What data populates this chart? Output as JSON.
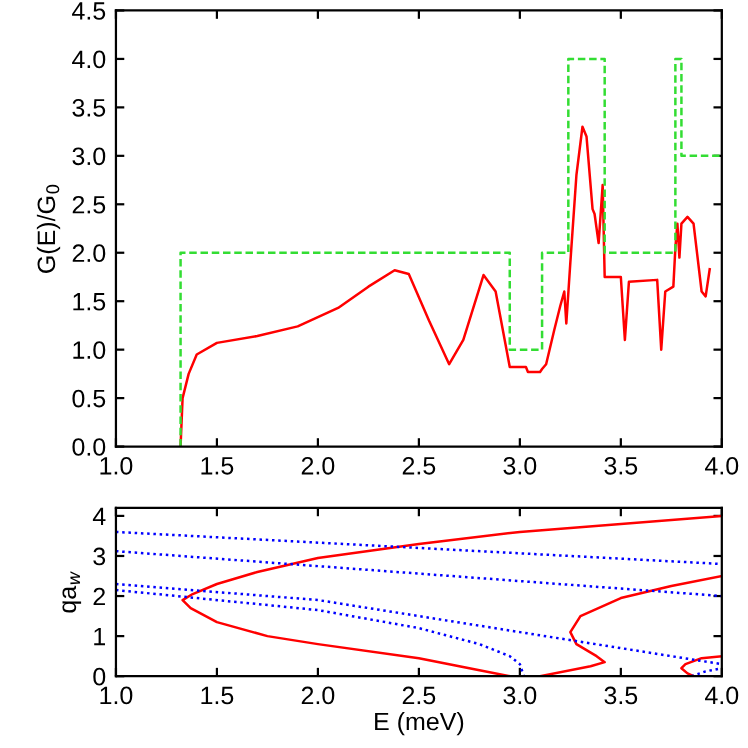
{
  "chart_data": [
    {
      "type": "line",
      "ylabel": "G(E)/G$_{0}$",
      "xlim": [
        1.0,
        4.0
      ],
      "ylim": [
        0,
        4.5
      ],
      "xticks": [
        {
          "value": 1.0,
          "label": "1.0"
        },
        {
          "value": 1.5,
          "label": "1.5"
        },
        {
          "value": 2.0,
          "label": "2.0"
        },
        {
          "value": 2.5,
          "label": "2.5"
        },
        {
          "value": 3.0,
          "label": "3.0"
        },
        {
          "value": 3.5,
          "label": "3.5"
        },
        {
          "value": 4.0,
          "label": "4.0"
        }
      ],
      "yticks": [
        {
          "value": 0,
          "label": "0.0"
        },
        {
          "value": 0.5,
          "label": "0.5"
        },
        {
          "value": 1.0,
          "label": "1.0"
        },
        {
          "value": 1.5,
          "label": "1.5"
        },
        {
          "value": 2.0,
          "label": "2.0"
        },
        {
          "value": 2.5,
          "label": "2.5"
        },
        {
          "value": 3.0,
          "label": "3.0"
        },
        {
          "value": 3.5,
          "label": "3.5"
        },
        {
          "value": 4.0,
          "label": "4.0"
        },
        {
          "value": 4.5,
          "label": "4.5"
        }
      ],
      "grid": false,
      "legend": false,
      "series": [
        {
          "color": "#ff0000",
          "line_style": "solid",
          "x": [
            1.32,
            1.33,
            1.36,
            1.4,
            1.5,
            1.7,
            1.9,
            2.1,
            2.25,
            2.38,
            2.45,
            2.55,
            2.65,
            2.72,
            2.82,
            2.88,
            2.95,
            3.03,
            3.04,
            3.1,
            3.11,
            3.13,
            3.17,
            3.2,
            3.22,
            3.23,
            3.25,
            3.28,
            3.31,
            3.33,
            3.36,
            3.37,
            3.39,
            3.41,
            3.42,
            3.5,
            3.52,
            3.54,
            3.68,
            3.7,
            3.72,
            3.76,
            3.77,
            3.78,
            3.79,
            3.8,
            3.83,
            3.86,
            3.9,
            3.92,
            3.94
          ],
          "values": [
            0,
            0.5,
            0.75,
            0.95,
            1.07,
            1.14,
            1.24,
            1.43,
            1.65,
            1.82,
            1.78,
            1.3,
            0.85,
            1.1,
            1.77,
            1.6,
            0.82,
            0.82,
            0.77,
            0.77,
            0.8,
            0.85,
            1.2,
            1.45,
            1.6,
            1.27,
            1.9,
            2.8,
            3.3,
            3.2,
            2.45,
            2.4,
            2.1,
            2.7,
            1.75,
            1.75,
            1.1,
            1.7,
            1.72,
            1.0,
            1.6,
            1.65,
            2.05,
            2.3,
            1.95,
            2.3,
            2.37,
            2.3,
            1.6,
            1.55,
            1.83
          ]
        },
        {
          "type": "step",
          "color": "#33dd33",
          "line_style": "dashed",
          "x": [
            1.32,
            1.32,
            2.95,
            3.11,
            3.24,
            3.42,
            3.77,
            3.8,
            4.0
          ],
          "values": [
            0,
            2,
            1,
            2,
            4,
            2,
            4,
            3,
            3
          ]
        }
      ]
    },
    {
      "type": "line",
      "xlabel": "E (meV)",
      "ylabel": "qa$_{w}$",
      "xlim": [
        1.0,
        4.0
      ],
      "ylim": [
        0,
        4.2
      ],
      "xticks": [
        {
          "value": 1.0,
          "label": "1.0"
        },
        {
          "value": 1.5,
          "label": "1.5"
        },
        {
          "value": 2.0,
          "label": "2.0"
        },
        {
          "value": 2.5,
          "label": "2.5"
        },
        {
          "value": 3.0,
          "label": "3.0"
        },
        {
          "value": 3.5,
          "label": "3.5"
        },
        {
          "value": 4.0,
          "label": "4.0"
        }
      ],
      "yticks": [
        0,
        1,
        2,
        3,
        4
      ],
      "grid": false,
      "legend": false,
      "series": [
        {
          "color": "#ff0000",
          "line_style": "solid",
          "x": [
            4.0,
            3.0,
            2.5,
            2.0,
            1.7,
            1.5,
            1.38,
            1.33,
            1.37,
            1.5,
            1.75,
            2.0,
            2.5,
            2.8,
            2.95
          ],
          "values": [
            4.0,
            3.6,
            3.3,
            2.95,
            2.6,
            2.3,
            2.05,
            1.9,
            1.7,
            1.35,
            1.0,
            0.8,
            0.45,
            0.15,
            0.0
          ]
        },
        {
          "color": "#ff0000",
          "line_style": "solid",
          "x": [
            3.1,
            3.35,
            3.42,
            3.38,
            3.28,
            3.25,
            3.3,
            3.5,
            3.75,
            4.0
          ],
          "values": [
            0,
            0.25,
            0.35,
            0.5,
            0.8,
            1.1,
            1.5,
            1.95,
            2.25,
            2.5
          ]
        },
        {
          "color": "#ff0000",
          "line_style": "solid",
          "x": [
            4.0,
            3.9,
            3.82,
            3.8,
            3.83,
            3.86
          ],
          "values": [
            0.5,
            0.45,
            0.3,
            0.2,
            0.07,
            0
          ]
        },
        {
          "color": "#0000ff",
          "line_style": "dotted",
          "x": [
            1.0,
            4.0
          ],
          "values": [
            3.6,
            2.8
          ]
        },
        {
          "color": "#0000ff",
          "line_style": "dotted",
          "x": [
            1.0,
            4.0
          ],
          "values": [
            3.12,
            2.0
          ]
        },
        {
          "color": "#0000ff",
          "line_style": "dotted",
          "x": [
            1.0,
            2.0,
            3.0,
            3.5,
            4.0
          ],
          "values": [
            2.3,
            1.9,
            1.1,
            0.7,
            0.3
          ]
        },
        {
          "color": "#0000ff",
          "line_style": "dotted",
          "x": [
            1.0,
            2.0,
            2.5,
            2.8,
            2.95,
            3.0,
            3.02
          ],
          "values": [
            2.15,
            1.65,
            1.2,
            0.8,
            0.5,
            0.3,
            0.0
          ]
        },
        {
          "color": "#0000ff",
          "line_style": "dotted",
          "x": [
            3.85,
            3.92,
            4.0
          ],
          "values": [
            0.0,
            0.12,
            0.2
          ]
        }
      ]
    }
  ]
}
